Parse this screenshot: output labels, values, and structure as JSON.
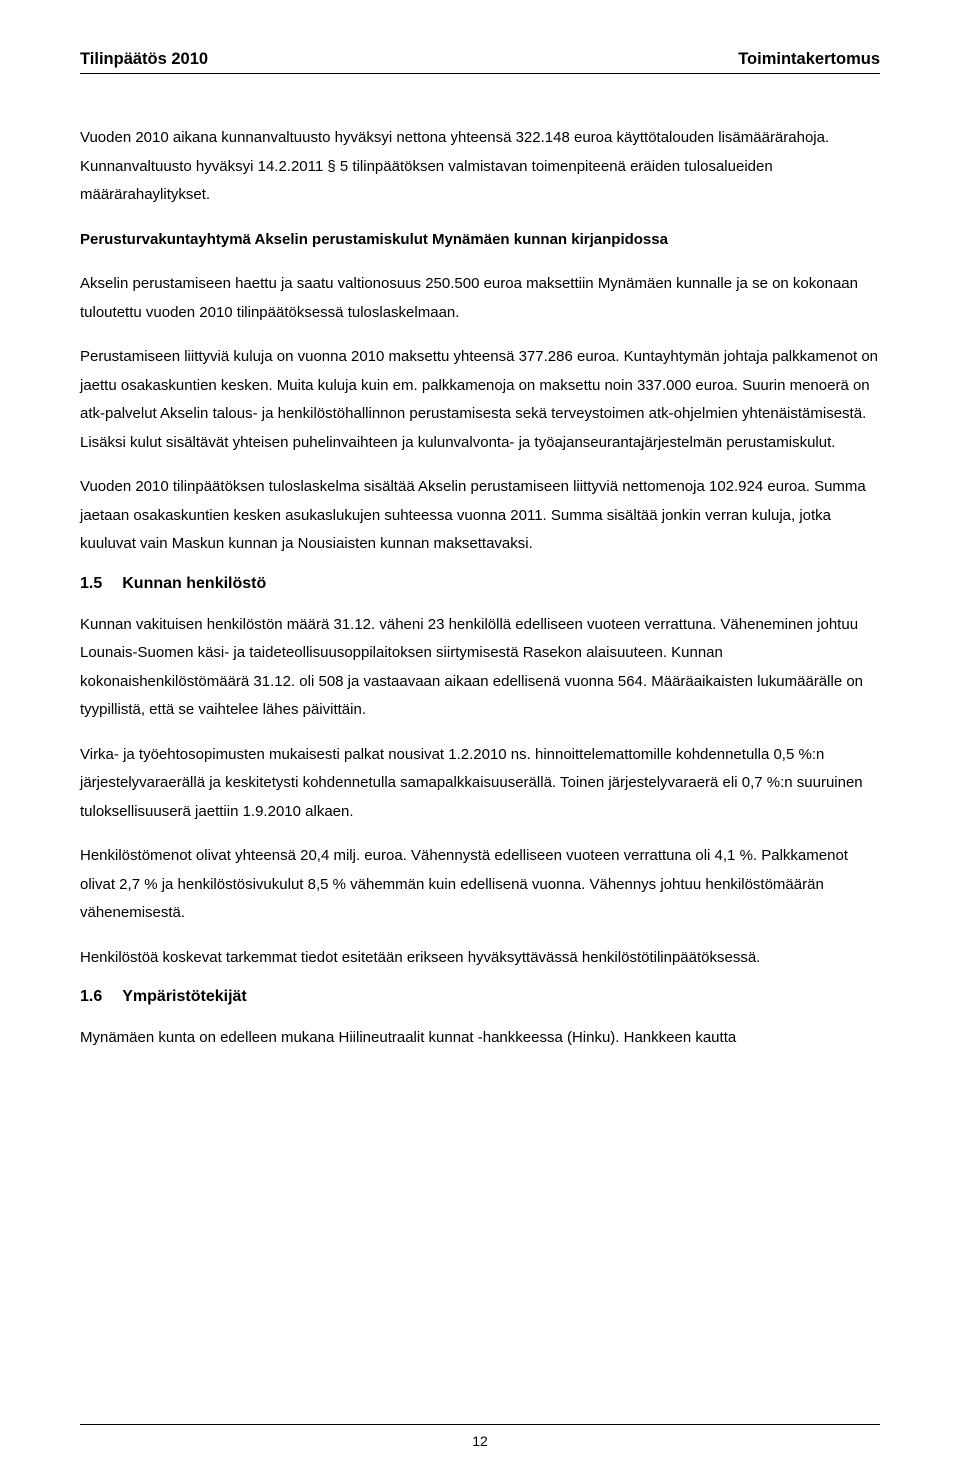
{
  "header": {
    "left": "Tilinpäätös 2010",
    "right": "Toimintakertomus"
  },
  "paragraphs": {
    "p1": "Vuoden 2010 aikana kunnanvaltuusto hyväksyi nettona yhteensä 322.148 euroa käyttötalouden lisämäärärahoja. Kunnanvaltuusto hyväksyi 14.2.2011 § 5 tilinpäätöksen valmistavan toimenpiteenä eräiden tulosalueiden määrärahaylitykset.",
    "p2": "Perusturvakuntayhtymä Akselin perustamiskulut Mynämäen kunnan kirjanpidossa",
    "p3": "Akselin perustamiseen haettu ja saatu valtionosuus 250.500 euroa maksettiin Mynämäen kunnalle ja se on kokonaan tuloutettu vuoden 2010 tilinpäätöksessä tuloslaskelmaan.",
    "p4": "Perustamiseen liittyviä kuluja on vuonna 2010 maksettu yhteensä 377.286 euroa. Kuntayhtymän johtaja palkkamenot on jaettu osakaskuntien kesken. Muita kuluja kuin em. palkkamenoja on maksettu noin 337.000 euroa. Suurin menoerä on atk-palvelut Akselin talous- ja henkilöstöhallinnon perustamisesta sekä terveystoimen atk-ohjelmien yhtenäistämisestä. Lisäksi kulut sisältävät yhteisen puhelinvaihteen ja kulunvalvonta- ja työajanseurantajärjestelmän perustamiskulut.",
    "p5": "Vuoden 2010 tilinpäätöksen tuloslaskelma sisältää Akselin perustamiseen liittyviä nettomenoja 102.924 euroa. Summa jaetaan osakaskuntien kesken asukaslukujen suhteessa vuonna 2011. Summa sisältää jonkin verran kuluja, jotka kuuluvat vain Maskun kunnan ja Nousiaisten kunnan maksettavaksi.",
    "p6": "Kunnan vakituisen henkilöstön määrä 31.12. väheni 23 henkilöllä edelliseen vuoteen verrattuna. Väheneminen johtuu Lounais-Suomen käsi- ja taideteollisuusoppilaitoksen siirtymisestä Rasekon alaisuuteen. Kunnan kokonaishenkilöstömäärä 31.12. oli 508 ja vastaavaan aikaan edellisenä vuonna 564. Määräaikaisten lukumäärälle on tyypillistä, että se vaihtelee lähes päivittäin.",
    "p7": "Virka- ja työehtosopimusten mukaisesti palkat nousivat 1.2.2010 ns. hinnoittelemattomille kohdennetulla 0,5 %:n järjestelyvaraerällä ja keskitetysti kohdennetulla samapalkkaisuuserällä. Toinen järjestelyvaraerä eli 0,7 %:n suuruinen tuloksellisuuserä jaettiin 1.9.2010 alkaen.",
    "p8": "Henkilöstömenot olivat yhteensä 20,4 milj. euroa. Vähennystä edelliseen vuoteen verrattuna oli 4,1 %. Palkkamenot olivat 2,7 % ja henkilöstösivukulut 8,5 % vähemmän kuin edellisenä vuonna. Vähennys johtuu henkilöstömäärän vähenemisestä.",
    "p9": "Henkilöstöä koskevat tarkemmat tiedot esitetään erikseen hyväksyttävässä henkilöstötilinpäätöksessä.",
    "p10": "Mynämäen kunta on edelleen mukana Hiilineutraalit kunnat -hankkeessa (Hinku). Hankkeen kautta"
  },
  "sections": {
    "s1": {
      "num": "1.5",
      "title": "Kunnan henkilöstö"
    },
    "s2": {
      "num": "1.6",
      "title": "Ympäristötekijät"
    }
  },
  "page": "12"
}
